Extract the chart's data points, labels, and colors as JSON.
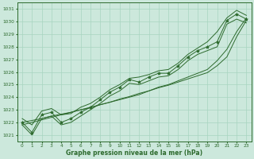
{
  "xlabel": "Graphe pression niveau de la mer (hPa)",
  "x": [
    0,
    1,
    2,
    3,
    4,
    5,
    6,
    7,
    8,
    9,
    10,
    11,
    12,
    13,
    14,
    15,
    16,
    17,
    18,
    19,
    20,
    21,
    22,
    23
  ],
  "y_main": [
    1022.0,
    1021.2,
    1022.6,
    1022.8,
    1022.0,
    1022.3,
    1022.8,
    1023.2,
    1023.8,
    1024.4,
    1024.8,
    1025.4,
    1025.2,
    1025.6,
    1025.9,
    1025.9,
    1026.5,
    1027.2,
    1027.7,
    1028.0,
    1028.4,
    1030.1,
    1030.6,
    1030.2
  ],
  "y_upper": [
    1022.3,
    1021.8,
    1022.9,
    1023.1,
    1022.6,
    1022.7,
    1023.2,
    1023.5,
    1024.0,
    1024.6,
    1025.0,
    1025.5,
    1025.6,
    1025.8,
    1026.1,
    1026.2,
    1026.7,
    1027.4,
    1027.9,
    1028.4,
    1029.2,
    1030.3,
    1030.9,
    1030.5
  ],
  "y_lower": [
    1021.8,
    1021.0,
    1022.3,
    1022.5,
    1021.8,
    1022.0,
    1022.5,
    1023.0,
    1023.5,
    1024.1,
    1024.5,
    1025.1,
    1025.0,
    1025.3,
    1025.6,
    1025.7,
    1026.2,
    1026.9,
    1027.4,
    1027.7,
    1028.0,
    1029.8,
    1030.2,
    1029.9
  ],
  "y_trend": [
    1022.0,
    1022.15,
    1022.3,
    1022.5,
    1022.65,
    1022.8,
    1023.0,
    1023.15,
    1023.4,
    1023.6,
    1023.85,
    1024.05,
    1024.3,
    1024.5,
    1024.75,
    1024.95,
    1025.2,
    1025.45,
    1025.7,
    1025.95,
    1026.5,
    1027.2,
    1028.8,
    1030.1
  ],
  "y_trend2": [
    1021.8,
    1022.0,
    1022.2,
    1022.4,
    1022.6,
    1022.8,
    1023.0,
    1023.2,
    1023.4,
    1023.6,
    1023.8,
    1024.0,
    1024.2,
    1024.5,
    1024.8,
    1025.0,
    1025.3,
    1025.6,
    1025.9,
    1026.2,
    1026.9,
    1027.8,
    1029.2,
    1030.3
  ],
  "line_color": "#2d6a2d",
  "bg_color": "#cce8dc",
  "grid_color": "#a8d4c0",
  "ylim": [
    1020.5,
    1031.5
  ],
  "yticks": [
    1021,
    1022,
    1023,
    1024,
    1025,
    1026,
    1027,
    1028,
    1029,
    1030,
    1031
  ],
  "xticks": [
    0,
    1,
    2,
    3,
    4,
    5,
    6,
    7,
    8,
    9,
    10,
    11,
    12,
    13,
    14,
    15,
    16,
    17,
    18,
    19,
    20,
    21,
    22,
    23
  ],
  "marker": "*"
}
